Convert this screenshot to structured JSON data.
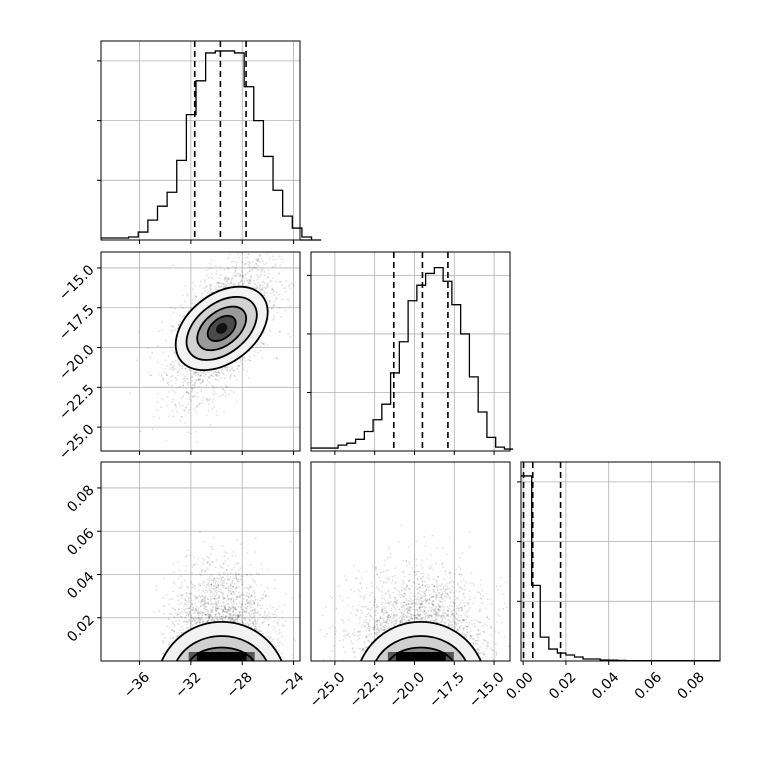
{
  "chart_data": {
    "type": "corner",
    "grid": true,
    "panels": {
      "p00": {
        "type": "histogram",
        "xlim": [
          -39,
          -23.5
        ],
        "bin_start": -37.6,
        "bin_width": 0.75,
        "counts": [
          0.01,
          0.015,
          0.04,
          0.1,
          0.17,
          0.24,
          0.4,
          0.63,
          0.8,
          0.94,
          0.95,
          0.95,
          0.94,
          0.77,
          0.6,
          0.42,
          0.25,
          0.12,
          0.06,
          0.015,
          0.0
        ],
        "ylim": [
          0,
          1.0
        ],
        "quantiles": [
          -31.7,
          -29.7,
          -27.7
        ],
        "y_ticks": [
          0.3,
          0.6,
          0.9
        ]
      },
      "p10": {
        "type": "hist2d",
        "xlim": [
          -39,
          -23.5
        ],
        "ylim": [
          -26.5,
          -14.0
        ],
        "center": [
          -29.6,
          -18.8
        ],
        "sigma": [
          1.9,
          2.1
        ],
        "corr": 0.55,
        "contour_levels": [
          0.5,
          1.0,
          1.5,
          2.0
        ],
        "y_ticks": [
          -15.0,
          -17.5,
          -20.0,
          -22.5,
          -25.0
        ],
        "y_tick_labels": [
          "−15.0",
          "−17.5",
          "−20.0",
          "−22.5",
          "−25.0"
        ]
      },
      "p11": {
        "type": "histogram",
        "xlim": [
          -26.5,
          -14.0
        ],
        "bin_start": -25.9,
        "bin_width": 0.55,
        "counts": [
          0.015,
          0.015,
          0.03,
          0.04,
          0.06,
          0.1,
          0.16,
          0.24,
          0.4,
          0.56,
          0.77,
          0.85,
          0.91,
          0.94,
          0.87,
          0.75,
          0.6,
          0.38,
          0.2,
          0.07,
          0.02,
          0.01
        ],
        "ylim": [
          0,
          1.02
        ],
        "quantiles": [
          -21.3,
          -19.5,
          -17.9
        ],
        "y_ticks": [
          0.3,
          0.6,
          0.9
        ]
      },
      "p20": {
        "type": "hist2d",
        "xlim": [
          -39,
          -23.5
        ],
        "ylim": [
          0.0,
          0.092
        ],
        "center": [
          -29.6,
          0.003
        ],
        "sigma": [
          1.9,
          0.012
        ],
        "contour_levels": [
          1,
          2,
          3
        ],
        "y_ticks": [
          0.02,
          0.04,
          0.06,
          0.08
        ],
        "y_tick_labels": [
          "0.02",
          "0.04",
          "0.06",
          "0.08"
        ],
        "x_ticks": [
          -36,
          -32,
          -28,
          -24
        ],
        "x_tick_labels": [
          "−36",
          "−32",
          "−28",
          "−24"
        ]
      },
      "p21": {
        "type": "hist2d",
        "xlim": [
          -26.5,
          -14.0
        ],
        "ylim": [
          0.0,
          0.092
        ],
        "center": [
          -19.6,
          0.003
        ],
        "sigma": [
          2.1,
          0.012
        ],
        "contour_levels": [
          1,
          2,
          3
        ],
        "x_ticks": [
          -25.0,
          -22.5,
          -20.0,
          -17.5,
          -15.0
        ],
        "x_tick_labels": [
          "−25.0",
          "−22.5",
          "−20.0",
          "−17.5",
          "−15.0"
        ]
      },
      "p22": {
        "type": "histogram",
        "xlim": [
          -0.001,
          0.092
        ],
        "bin_start": 0.0,
        "bin_width": 0.004,
        "counts": [
          0.93,
          0.38,
          0.12,
          0.06,
          0.04,
          0.03,
          0.02,
          0.01,
          0.01,
          0.005,
          0.004,
          0.003,
          0.002
        ],
        "ylim": [
          0,
          1.0
        ],
        "quantiles": [
          0.0002,
          0.0045,
          0.0175
        ],
        "y_ticks": [
          0.3,
          0.6,
          0.9
        ],
        "x_ticks": [
          0.0,
          0.02,
          0.04,
          0.06,
          0.08
        ],
        "x_tick_labels": [
          "0.00",
          "0.02",
          "0.04",
          "0.06",
          "0.08"
        ]
      }
    }
  }
}
